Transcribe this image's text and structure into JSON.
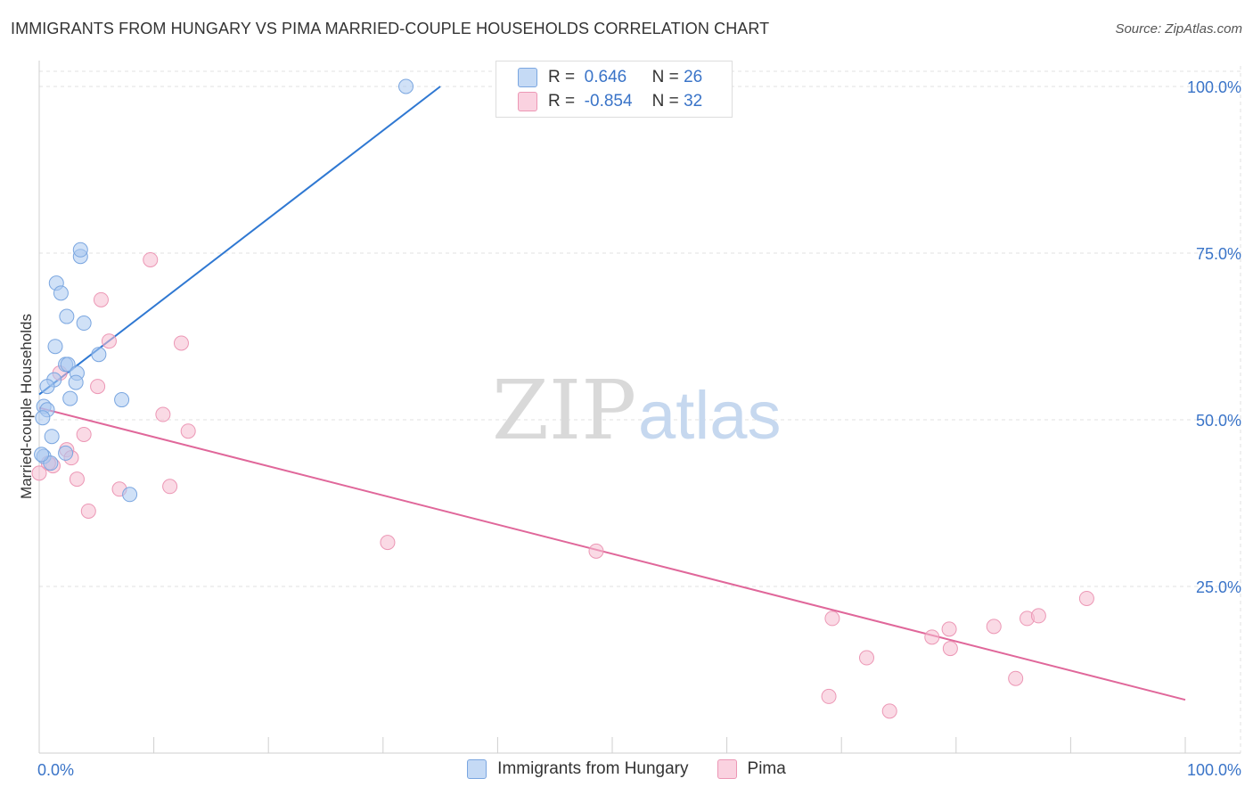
{
  "title": "IMMIGRANTS FROM HUNGARY VS PIMA MARRIED-COUPLE HOUSEHOLDS CORRELATION CHART",
  "source": "Source: ZipAtlas.com",
  "watermark": {
    "zip": "ZIP",
    "atlas": "atlas"
  },
  "colors": {
    "blue_fill": "#aac8f0",
    "blue_stroke": "#7aa6e0",
    "blue_line": "#2f78d2",
    "pink_fill": "#f6bcd0",
    "pink_stroke": "#ec97b5",
    "pink_line": "#e0679a",
    "tick_text": "#3a74c8"
  },
  "legend": {
    "rows": [
      {
        "r_label": "R =",
        "r_value": "0.646",
        "n_label": "N =",
        "n_value": "26"
      },
      {
        "r_label": "R =",
        "r_value": "-0.854",
        "n_label": "N =",
        "n_value": "32"
      }
    ]
  },
  "bottom_legend": {
    "series1": "Immigrants from Hungary",
    "series2": "Pima"
  },
  "chart_data": {
    "type": "scatter",
    "title": "IMMIGRANTS FROM HUNGARY VS PIMA MARRIED-COUPLE HOUSEHOLDS CORRELATION CHART",
    "xlabel": "",
    "ylabel": "Married-couple Households",
    "xlim": [
      0,
      100
    ],
    "ylim": [
      0,
      102
    ],
    "x_tick_labels": [
      "0.0%",
      "100.0%"
    ],
    "y_ticks": [
      25,
      50,
      75,
      100
    ],
    "y_tick_labels": [
      "25.0%",
      "50.0%",
      "75.0%",
      "100.0%"
    ],
    "grid": true,
    "series": [
      {
        "name": "Immigrants from Hungary",
        "r": 0.646,
        "n": 26,
        "points": [
          [
            32,
            100
          ],
          [
            3.6,
            74.5
          ],
          [
            3.6,
            75.5
          ],
          [
            1.5,
            70.5
          ],
          [
            1.9,
            69
          ],
          [
            2.4,
            65.5
          ],
          [
            3.9,
            64.5
          ],
          [
            1.4,
            61
          ],
          [
            5.2,
            59.8
          ],
          [
            2.3,
            58.3
          ],
          [
            2.5,
            58.3
          ],
          [
            3.3,
            57
          ],
          [
            1.3,
            56
          ],
          [
            3.2,
            55.6
          ],
          [
            0.7,
            55
          ],
          [
            2.7,
            53.2
          ],
          [
            7.2,
            53
          ],
          [
            0.4,
            52
          ],
          [
            0.7,
            51.5
          ],
          [
            0.3,
            50.3
          ],
          [
            1.1,
            47.5
          ],
          [
            2.3,
            45
          ],
          [
            0.4,
            44.5
          ],
          [
            1.0,
            43.5
          ],
          [
            7.9,
            38.8
          ],
          [
            0.2,
            44.8
          ]
        ],
        "trend": [
          [
            0,
            53.8
          ],
          [
            35,
            100
          ]
        ]
      },
      {
        "name": "Pima",
        "r": -0.854,
        "n": 32,
        "points": [
          [
            9.7,
            74
          ],
          [
            5.4,
            68
          ],
          [
            12.4,
            61.5
          ],
          [
            6.1,
            61.8
          ],
          [
            1.8,
            57
          ],
          [
            5.1,
            55
          ],
          [
            10.8,
            50.8
          ],
          [
            13,
            48.3
          ],
          [
            3.9,
            47.8
          ],
          [
            2.4,
            45.5
          ],
          [
            2.8,
            44.3
          ],
          [
            1.2,
            43.1
          ],
          [
            0.8,
            43.5
          ],
          [
            3.3,
            41.1
          ],
          [
            7,
            39.6
          ],
          [
            11.4,
            40
          ],
          [
            4.3,
            36.3
          ],
          [
            30.4,
            31.6
          ],
          [
            48.6,
            30.3
          ],
          [
            69.2,
            20.2
          ],
          [
            72.2,
            14.3
          ],
          [
            74.2,
            6.3
          ],
          [
            77.9,
            17.4
          ],
          [
            79.4,
            18.6
          ],
          [
            79.5,
            15.7
          ],
          [
            83.3,
            19
          ],
          [
            85.2,
            11.2
          ],
          [
            86.2,
            20.2
          ],
          [
            87.2,
            20.6
          ],
          [
            91.4,
            23.2
          ],
          [
            68.9,
            8.5
          ],
          [
            0,
            42
          ]
        ],
        "trend": [
          [
            0,
            51.8
          ],
          [
            100,
            8
          ]
        ]
      }
    ]
  }
}
